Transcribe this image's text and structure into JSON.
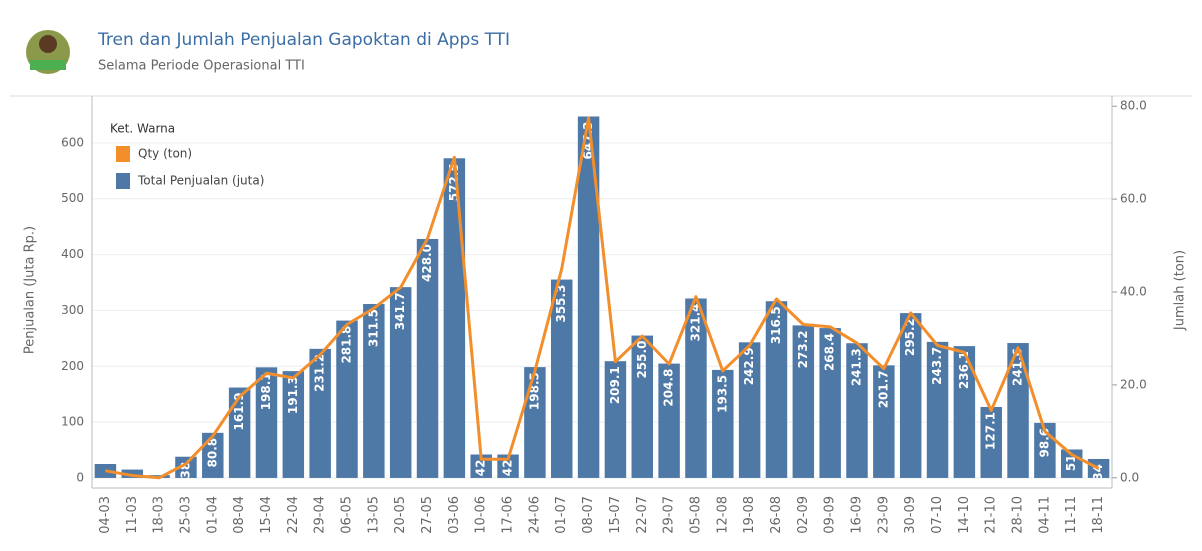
{
  "chart_data": {
    "type": "bar_line",
    "title": "Tren dan Jumlah Penjualan Gapoktan di Apps TTI",
    "subtitle": "Selama Periode Operasional TTI",
    "y_label": "Penjualan (Juta Rp.)",
    "y2_label": "Jumlah (ton)",
    "legend_title": "Ket. Warna",
    "categories": [
      "04-03",
      "11-03",
      "18-03",
      "25-03",
      "01-04",
      "08-04",
      "15-04",
      "22-04",
      "29-04",
      "06-05",
      "13-05",
      "20-05",
      "27-05",
      "03-06",
      "10-06",
      "17-06",
      "24-06",
      "01-07",
      "08-07",
      "15-07",
      "22-07",
      "29-07",
      "05-08",
      "12-08",
      "19-08",
      "26-08",
      "02-09",
      "09-09",
      "16-09",
      "23-09",
      "30-09",
      "07-10",
      "14-10",
      "21-10",
      "28-10",
      "04-11",
      "11-11",
      "18-11"
    ],
    "series": [
      {
        "name": "Qty (ton)",
        "type": "line",
        "axis": "y2",
        "color": "#f28e2b",
        "values": [
          1.5,
          0.5,
          0,
          3,
          9,
          17.5,
          22.5,
          21.5,
          26.5,
          33,
          36.5,
          41,
          51.5,
          69,
          4,
          4,
          23,
          45,
          77.5,
          25,
          30.5,
          24.5,
          39,
          23,
          28.5,
          38.5,
          33,
          32.5,
          29,
          23.5,
          35.5,
          28.5,
          27,
          14.5,
          28,
          10,
          5,
          2
        ]
      },
      {
        "name": "Total Penjualan (juta)",
        "type": "bar",
        "color": "#4e79a7",
        "values": [
          25,
          15,
          5,
          38,
          80.8,
          161.9,
          198.1,
          191.3,
          231.2,
          281.8,
          311.5,
          341.7,
          428.0,
          572.5,
          42,
          42,
          198.5,
          355.3,
          647.3,
          209.1,
          255.0,
          204.8,
          321.4,
          193.5,
          242.9,
          316.5,
          273.2,
          268.4,
          241.3,
          201.7,
          295.2,
          243.7,
          236.1,
          127.1,
          241.6,
          98.6,
          51,
          34
        ],
        "value_labels": [
          null,
          null,
          null,
          "38",
          "80.8",
          "161.9",
          "198.1",
          "191.3",
          "231.2",
          "281.8",
          "311.5",
          "341.7",
          "428.0",
          "572.5",
          "42",
          "42",
          "198.5",
          "355.3",
          "647.3",
          "209.1",
          "255.0",
          "204.8",
          "321.4",
          "193.5",
          "242.9",
          "316.5",
          "273.2",
          "268.4",
          "241.3",
          "201.7",
          "295.2",
          "243.7",
          "236.1",
          "127.1",
          "241.6",
          "98.6",
          "51",
          "34"
        ]
      }
    ],
    "ylim": [
      -18,
      684
    ],
    "yticks": [
      0,
      100,
      200,
      300,
      400,
      500,
      600
    ],
    "y2lim": [
      -2.2,
      82.2
    ],
    "y2ticks": [
      {
        "value": 0,
        "label": "0.0"
      },
      {
        "value": 20,
        "label": "20.0"
      },
      {
        "value": 40,
        "label": "40.0"
      },
      {
        "value": 60,
        "label": "60.0"
      },
      {
        "value": 80,
        "label": "80.0"
      }
    ],
    "grid": true
  }
}
